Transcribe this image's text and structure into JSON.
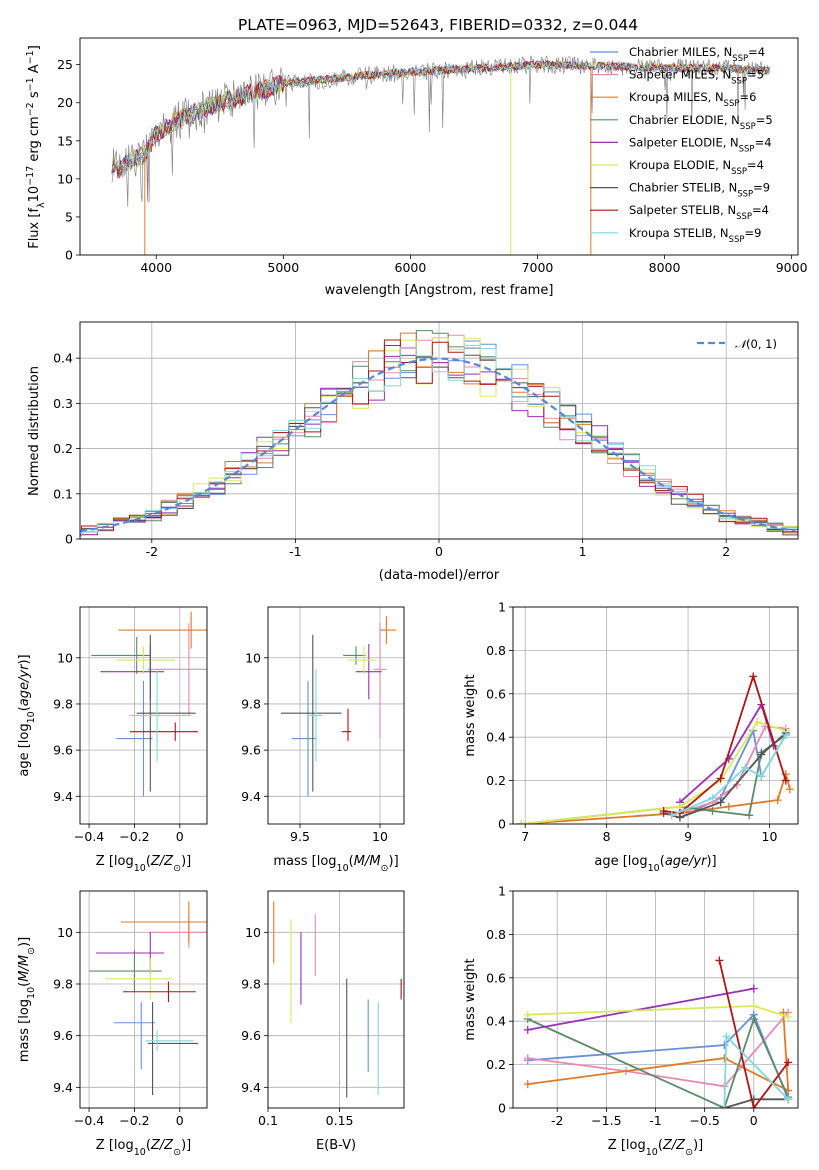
{
  "figure_title": "PLATE=0963, MJD=52643, FIBERID=0332, z=0.044",
  "colors": {
    "chabrier_miles": "#6a8fdd",
    "salpeter_miles": "#e889b4",
    "kroupa_miles": "#e07a2a",
    "chabrier_elodie": "#5c8a6a",
    "salpeter_elodie": "#9b2fb5",
    "kroupa_elodie": "#d8ea5a",
    "chabrier_stelib": "#555555",
    "salpeter_stelib": "#b01515",
    "kroupa_stelib": "#80d8e0",
    "data": "#7a7a7a",
    "normal": "#5588dd"
  },
  "chart_data": [
    {
      "id": "spectrum",
      "type": "line",
      "title": "PLATE=0963, MJD=52643, FIBERID=0332, z=0.044",
      "xlabel": "wavelength [Angstrom, rest frame]",
      "ylabel": "Flux [f_λ 10^-17 erg cm^-2 s^-1 A^-1]",
      "xlim": [
        3400,
        9050
      ],
      "ylim": [
        0,
        28.5
      ],
      "xticks": [
        4000,
        5000,
        6000,
        7000,
        8000,
        9000
      ],
      "yticks": [
        0,
        5,
        10,
        15,
        20,
        25
      ],
      "grid": false,
      "legend_position": "top-right",
      "continuum": {
        "x": [
          3650,
          3700,
          3800,
          3900,
          4000,
          4200,
          4500,
          4800,
          5000,
          5300,
          5600,
          6000,
          6500,
          7000,
          7500,
          8000,
          8500,
          8830
        ],
        "y": [
          12,
          11,
          12.5,
          13,
          16,
          18,
          20,
          21.5,
          22.5,
          23,
          23.5,
          24,
          24.5,
          25,
          24.8,
          24.6,
          24.5,
          24.2
        ]
      },
      "series": [
        {
          "name": "Chabrier MILES, N_SSP=4",
          "color_key": "chabrier_miles"
        },
        {
          "name": "Salpeter MILES, N_SSP=5",
          "color_key": "salpeter_miles"
        },
        {
          "name": "Kroupa MILES, N_SSP=6",
          "color_key": "kroupa_miles"
        },
        {
          "name": "Chabrier ELODIE, N_SSP=5",
          "color_key": "chabrier_elodie"
        },
        {
          "name": "Salpeter ELODIE, N_SSP=4",
          "color_key": "salpeter_elodie"
        },
        {
          "name": "Kroupa ELODIE, N_SSP=4",
          "color_key": "kroupa_elodie"
        },
        {
          "name": "Chabrier STELIB, N_SSP=9",
          "color_key": "chabrier_stelib"
        },
        {
          "name": "Salpeter STELIB, N_SSP=4",
          "color_key": "salpeter_stelib"
        },
        {
          "name": "Kroupa STELIB, N_SSP=9",
          "color_key": "kroupa_stelib"
        }
      ],
      "spikes": [
        {
          "x": 3910,
          "y_from": 13,
          "y_to": 0,
          "color_key": "kroupa_miles"
        },
        {
          "x": 6790,
          "y_from": 24,
          "y_to": 0,
          "color_key": "kroupa_elodie"
        },
        {
          "x": 7420,
          "y_from": 24.5,
          "y_to": 0,
          "color_key": "kroupa_miles"
        }
      ]
    },
    {
      "id": "residuals",
      "type": "histogram",
      "xlabel": "(data-model)/error",
      "ylabel": "Normed distribution",
      "xlim": [
        -2.5,
        2.5
      ],
      "ylim": [
        0,
        0.48
      ],
      "xticks": [
        -2,
        -1,
        0,
        1,
        2
      ],
      "yticks": [
        0.0,
        0.1,
        0.2,
        0.3,
        0.4
      ],
      "grid": true,
      "legend_position": "top-right",
      "legend": "N(0,1)",
      "reference": {
        "type": "normal",
        "mean": 0,
        "sigma": 1
      },
      "bin_width": 0.111
    },
    {
      "id": "age_vs_Z",
      "type": "errorbar",
      "xlabel": "Z [log10(Z/Z_sun)]",
      "ylabel": "age [log10(age/yr)]",
      "xlim": [
        -0.44,
        0.12
      ],
      "ylim": [
        9.28,
        10.22
      ],
      "xticks": [
        -0.4,
        -0.2,
        0.0
      ],
      "yticks": [
        9.4,
        9.6,
        9.8,
        10.0
      ],
      "grid": true,
      "points": [
        {
          "key": "chabrier_miles",
          "x": -0.16,
          "y": 9.65,
          "xerr": [
            0.12,
            0.04
          ],
          "yerr": [
            0.25,
            0.25
          ]
        },
        {
          "key": "salpeter_miles",
          "x": 0.04,
          "y": 9.95,
          "xerr": [
            0.18,
            0.1
          ],
          "yerr": [
            0.2,
            0.2
          ]
        },
        {
          "key": "kroupa_miles",
          "x": 0.05,
          "y": 10.12,
          "xerr": [
            0.32,
            0.14
          ],
          "yerr": [
            0.08,
            0.08
          ]
        },
        {
          "key": "chabrier_elodie",
          "x": -0.19,
          "y": 10.01,
          "xerr": [
            0.2,
            0.06
          ],
          "yerr": [
            0.08,
            0.08
          ]
        },
        {
          "key": "salpeter_elodie",
          "x": -0.13,
          "y": 9.94,
          "xerr": [
            0.22,
            0.06
          ],
          "yerr": [
            0.12,
            0.12
          ]
        },
        {
          "key": "kroupa_elodie",
          "x": -0.16,
          "y": 9.99,
          "xerr": [
            0.12,
            0.14
          ],
          "yerr": [
            0.06,
            0.06
          ]
        },
        {
          "key": "chabrier_stelib",
          "x": -0.13,
          "y": 9.76,
          "xerr": [
            0.06,
            0.2
          ],
          "yerr": [
            0.34,
            0.34
          ]
        },
        {
          "key": "salpeter_stelib",
          "x": -0.02,
          "y": 9.68,
          "xerr": [
            0.2,
            0.1
          ],
          "yerr": [
            0.04,
            0.04
          ]
        },
        {
          "key": "kroupa_stelib",
          "x": -0.1,
          "y": 9.75,
          "xerr": [
            0.12,
            0.15
          ],
          "yerr": [
            0.2,
            0.2
          ]
        }
      ]
    },
    {
      "id": "age_vs_mass",
      "type": "errorbar",
      "xlabel": "mass [log10(M/M_sun)]",
      "xlim": [
        9.3,
        10.15
      ],
      "ylim": [
        9.28,
        10.22
      ],
      "xticks": [
        9.5,
        10.0
      ],
      "yticks": [
        9.4,
        9.6,
        9.8,
        10.0
      ],
      "grid": true,
      "points": [
        {
          "key": "chabrier_miles",
          "x": 9.55,
          "y": 9.65,
          "xerr": [
            0.1,
            0.05
          ],
          "yerr": [
            0.25,
            0.25
          ]
        },
        {
          "key": "salpeter_miles",
          "x": 10.0,
          "y": 9.95,
          "xerr": [
            0.04,
            0.04
          ],
          "yerr": [
            0.3,
            0.2
          ]
        },
        {
          "key": "kroupa_miles",
          "x": 10.04,
          "y": 10.12,
          "xerr": [
            0.04,
            0.06
          ],
          "yerr": [
            0.06,
            0.06
          ]
        },
        {
          "key": "chabrier_elodie",
          "x": 9.85,
          "y": 10.01,
          "xerr": [
            0.08,
            0.06
          ],
          "yerr": [
            0.04,
            0.04
          ]
        },
        {
          "key": "salpeter_elodie",
          "x": 9.93,
          "y": 9.94,
          "xerr": [
            0.08,
            0.08
          ],
          "yerr": [
            0.12,
            0.12
          ]
        },
        {
          "key": "kroupa_elodie",
          "x": 9.9,
          "y": 9.99,
          "xerr": [
            0.1,
            0.08
          ],
          "yerr": [
            0.06,
            0.06
          ]
        },
        {
          "key": "chabrier_stelib",
          "x": 9.58,
          "y": 9.76,
          "xerr": [
            0.2,
            0.18
          ],
          "yerr": [
            0.34,
            0.34
          ]
        },
        {
          "key": "salpeter_stelib",
          "x": 9.8,
          "y": 9.68,
          "xerr": [
            0.04,
            0.02
          ],
          "yerr": [
            0.04,
            0.1
          ]
        },
        {
          "key": "kroupa_stelib",
          "x": 9.6,
          "y": 9.75,
          "xerr": [
            0.04,
            0.04
          ],
          "yerr": [
            0.2,
            0.2
          ]
        }
      ]
    },
    {
      "id": "massweight_vs_age",
      "type": "line",
      "xlabel": "age [log10(age/yr)]",
      "ylabel": "mass weight",
      "xlim": [
        6.85,
        10.35
      ],
      "ylim": [
        0,
        1.0
      ],
      "xticks": [
        7,
        8,
        9,
        10
      ],
      "yticks": [
        0.0,
        0.2,
        0.4,
        0.6,
        0.8,
        1.0
      ],
      "grid": true,
      "series": [
        {
          "key": "chabrier_miles",
          "x": [
            8.9,
            9.4,
            9.8,
            9.9,
            10.2
          ],
          "y": [
            0.03,
            0.12,
            0.43,
            0.22,
            0.41
          ]
        },
        {
          "key": "salpeter_miles",
          "x": [
            8.8,
            9.3,
            9.6,
            9.95,
            10.2
          ],
          "y": [
            0.04,
            0.1,
            0.18,
            0.45,
            0.44
          ]
        },
        {
          "key": "kroupa_miles",
          "x": [
            6.95,
            8.9,
            9.5,
            10.1,
            10.2,
            10.25
          ],
          "y": [
            0.0,
            0.05,
            0.08,
            0.11,
            0.23,
            0.16
          ]
        },
        {
          "key": "chabrier_elodie",
          "x": [
            6.95,
            8.9,
            9.3,
            9.75,
            9.9,
            10.2
          ],
          "y": [
            0.0,
            0.08,
            0.06,
            0.04,
            0.33,
            0.41
          ]
        },
        {
          "key": "salpeter_elodie",
          "x": [
            8.9,
            9.5,
            9.9,
            10.05
          ],
          "y": [
            0.1,
            0.3,
            0.55,
            0.36
          ]
        },
        {
          "key": "kroupa_elodie",
          "x": [
            6.95,
            8.9,
            9.4,
            9.85,
            10.2
          ],
          "y": [
            0.0,
            0.08,
            0.2,
            0.47,
            0.43
          ]
        },
        {
          "key": "chabrier_stelib",
          "x": [
            8.7,
            8.9,
            9.4,
            9.9,
            10.2
          ],
          "y": [
            0.05,
            0.03,
            0.1,
            0.32,
            0.42
          ]
        },
        {
          "key": "salpeter_stelib",
          "x": [
            8.7,
            8.9,
            9.4,
            9.8,
            10.2
          ],
          "y": [
            0.06,
            0.05,
            0.21,
            0.68,
            0.2
          ]
        },
        {
          "key": "kroupa_stelib",
          "x": [
            8.8,
            9.3,
            9.7,
            9.9,
            10.2
          ],
          "y": [
            0.04,
            0.12,
            0.26,
            0.22,
            0.41
          ]
        }
      ]
    },
    {
      "id": "mass_vs_Z",
      "type": "errorbar",
      "xlabel": "Z [log10(Z/Z_sun)]",
      "ylabel": "mass [log10(M/M_sun)]",
      "xlim": [
        -0.44,
        0.12
      ],
      "ylim": [
        9.32,
        10.16
      ],
      "xticks": [
        -0.4,
        -0.2,
        0.0
      ],
      "yticks": [
        9.4,
        9.6,
        9.8,
        10.0
      ],
      "grid": true,
      "points": [
        {
          "key": "chabrier_miles",
          "x": -0.17,
          "y": 9.65,
          "xerr": [
            0.12,
            0.06
          ],
          "yerr": [
            0.18,
            0.08
          ]
        },
        {
          "key": "salpeter_miles",
          "x": 0.04,
          "y": 10.0,
          "xerr": [
            0.18,
            0.1
          ],
          "yerr": [
            0.06,
            0.06
          ]
        },
        {
          "key": "kroupa_miles",
          "x": 0.04,
          "y": 10.04,
          "xerr": [
            0.3,
            0.1
          ],
          "yerr": [
            0.08,
            0.08
          ]
        },
        {
          "key": "chabrier_elodie",
          "x": -0.2,
          "y": 9.85,
          "xerr": [
            0.2,
            0.12
          ],
          "yerr": [
            0.08,
            0.08
          ]
        },
        {
          "key": "salpeter_elodie",
          "x": -0.13,
          "y": 9.92,
          "xerr": [
            0.24,
            0.06
          ],
          "yerr": [
            0.08,
            0.08
          ]
        },
        {
          "key": "kroupa_elodie",
          "x": -0.13,
          "y": 9.82,
          "xerr": [
            0.2,
            0.1
          ],
          "yerr": [
            0.08,
            0.08
          ]
        },
        {
          "key": "chabrier_stelib",
          "x": -0.12,
          "y": 9.57,
          "xerr": [
            0.02,
            0.2
          ],
          "yerr": [
            0.2,
            0.16
          ]
        },
        {
          "key": "salpeter_stelib",
          "x": -0.05,
          "y": 9.77,
          "xerr": [
            0.2,
            0.12
          ],
          "yerr": [
            0.04,
            0.04
          ]
        },
        {
          "key": "kroupa_stelib",
          "x": -0.1,
          "y": 9.58,
          "xerr": [
            0.05,
            0.16
          ],
          "yerr": [
            0.04,
            0.04
          ]
        }
      ]
    },
    {
      "id": "mass_vs_ebv",
      "type": "errorbar",
      "xlabel": "E(B-V)",
      "xlim": [
        0.1,
        0.195
      ],
      "ylim": [
        9.32,
        10.16
      ],
      "xticks": [
        0.1,
        0.15
      ],
      "yticks": [
        9.4,
        9.6,
        9.8,
        10.0
      ],
      "grid": true,
      "points": [
        {
          "key": "kroupa_miles",
          "x": 0.104,
          "y": 10.0,
          "yerr": [
            0.12,
            0.12
          ]
        },
        {
          "key": "kroupa_elodie",
          "x": 0.116,
          "y": 9.85,
          "yerr": [
            0.2,
            0.2
          ]
        },
        {
          "key": "salpeter_elodie",
          "x": 0.123,
          "y": 9.86,
          "yerr": [
            0.14,
            0.14
          ]
        },
        {
          "key": "salpeter_miles",
          "x": 0.133,
          "y": 9.95,
          "yerr": [
            0.12,
            0.12
          ]
        },
        {
          "key": "chabrier_stelib",
          "x": 0.155,
          "y": 9.62,
          "yerr": [
            0.26,
            0.2
          ]
        },
        {
          "key": "chabrier_miles",
          "x": 0.17,
          "y": 9.6,
          "yerr": [
            0.14,
            0.14
          ]
        },
        {
          "key": "kroupa_stelib",
          "x": 0.177,
          "y": 9.55,
          "yerr": [
            0.18,
            0.18
          ]
        },
        {
          "key": "salpeter_stelib",
          "x": 0.193,
          "y": 9.78,
          "yerr": [
            0.04,
            0.04
          ]
        }
      ]
    },
    {
      "id": "massweight_vs_Z",
      "type": "line",
      "xlabel": "Z [log10(Z/Z_sun)]",
      "ylabel": "mass weight",
      "xlim": [
        -2.45,
        0.45
      ],
      "ylim": [
        0,
        1.0
      ],
      "xticks": [
        -2.0,
        -1.5,
        -1.0,
        -0.5,
        0.0
      ],
      "yticks": [
        0.0,
        0.2,
        0.4,
        0.6,
        0.8,
        1.0
      ],
      "grid": true,
      "series": [
        {
          "key": "chabrier_miles",
          "x": [
            -2.3,
            -0.3,
            0.0,
            0.35
          ],
          "y": [
            0.22,
            0.29,
            0.43,
            0.04
          ]
        },
        {
          "key": "salpeter_miles",
          "x": [
            -2.3,
            -1.3,
            -0.3,
            0.35
          ],
          "y": [
            0.23,
            0.17,
            0.1,
            0.44
          ]
        },
        {
          "key": "kroupa_miles",
          "x": [
            -2.3,
            -0.3,
            0.35,
            0.3
          ],
          "y": [
            0.11,
            0.23,
            0.08,
            0.44
          ]
        },
        {
          "key": "chabrier_elodie",
          "x": [
            -2.3,
            -0.3,
            0.0,
            0.35
          ],
          "y": [
            0.41,
            0.0,
            0.41,
            0.05
          ]
        },
        {
          "key": "salpeter_elodie",
          "x": [
            -2.3,
            0.0
          ],
          "y": [
            0.36,
            0.55
          ]
        },
        {
          "key": "kroupa_elodie",
          "x": [
            -2.3,
            0.0,
            0.35
          ],
          "y": [
            0.43,
            0.47,
            0.42
          ]
        },
        {
          "key": "chabrier_stelib",
          "x": [
            -0.3,
            0.0,
            0.35
          ],
          "y": [
            0.0,
            0.04,
            0.04
          ]
        },
        {
          "key": "salpeter_stelib",
          "x": [
            -0.35,
            0.0,
            0.35
          ],
          "y": [
            0.68,
            0.0,
            0.21
          ]
        },
        {
          "key": "kroupa_stelib",
          "x": [
            -0.3,
            -0.28,
            0.35
          ],
          "y": [
            0.0,
            0.33,
            0.04
          ]
        }
      ]
    }
  ]
}
